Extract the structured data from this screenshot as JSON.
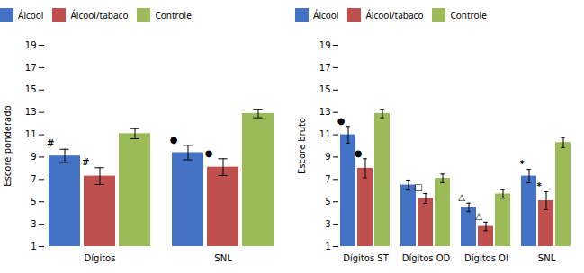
{
  "chart_data": [
    {
      "type": "bar",
      "ylabel": "Escore ponderado",
      "categories": [
        "Dígitos",
        "SNL"
      ],
      "series": [
        {
          "name": "Álcool",
          "color": "#4472c4",
          "values": [
            9.1,
            9.4
          ],
          "errors": [
            0.6,
            0.65
          ]
        },
        {
          "name": "Álcool/tabaco",
          "color": "#c0504d",
          "values": [
            7.3,
            8.1
          ],
          "errors": [
            0.75,
            0.75
          ]
        },
        {
          "name": "Controle",
          "color": "#9bbb59",
          "values": [
            11.1,
            12.9
          ],
          "errors": [
            0.45,
            0.38
          ]
        }
      ],
      "ylim": [
        1,
        19
      ],
      "yticks": [
        1,
        3,
        5,
        7,
        9,
        11,
        13,
        15,
        17,
        19
      ],
      "annotations": [
        {
          "category": "Dígitos",
          "series": "Álcool",
          "text": "#"
        },
        {
          "category": "Dígitos",
          "series": "Álcool/tabaco",
          "text": "#"
        },
        {
          "category": "SNL",
          "series": "Álcool",
          "text": "●"
        },
        {
          "category": "SNL",
          "series": "Álcool/tabaco",
          "text": "●"
        }
      ],
      "legend": "upper left",
      "grid": false
    },
    {
      "type": "bar",
      "ylabel": "Escore bruto",
      "categories": [
        "Dígitos ST",
        "Dígitos OD",
        "Dígitos OI",
        "SNL"
      ],
      "series": [
        {
          "name": "Álcool",
          "color": "#4472c4",
          "values": [
            11.0,
            6.5,
            4.5,
            7.3
          ],
          "errors": [
            0.75,
            0.45,
            0.38,
            0.6
          ]
        },
        {
          "name": "Álcool/tabaco",
          "color": "#c0504d",
          "values": [
            8.0,
            5.3,
            2.8,
            5.1
          ],
          "errors": [
            0.85,
            0.45,
            0.38,
            0.8
          ]
        },
        {
          "name": "Controle",
          "color": "#9bbb59",
          "values": [
            12.9,
            7.1,
            5.7,
            10.3
          ],
          "errors": [
            0.38,
            0.38,
            0.38,
            0.45
          ]
        }
      ],
      "ylim": [
        1,
        19
      ],
      "yticks": [
        1,
        3,
        5,
        7,
        9,
        11,
        13,
        15,
        17,
        19
      ],
      "annotations": [
        {
          "category": "Dígitos ST",
          "series": "Álcool",
          "text": "●"
        },
        {
          "category": "Dígitos ST",
          "series": "Álcool/tabaco",
          "text": "●"
        },
        {
          "category": "Dígitos OD",
          "series": "Álcool/tabaco",
          "text": "□"
        },
        {
          "category": "Dígitos OI",
          "series": "Álcool",
          "text": "△"
        },
        {
          "category": "Dígitos OI",
          "series": "Álcool/tabaco",
          "text": "△"
        },
        {
          "category": "SNL",
          "series": "Álcool",
          "text": "*"
        },
        {
          "category": "SNL",
          "series": "Álcool/tabaco",
          "text": "*"
        }
      ],
      "legend": "upper left",
      "grid": false
    }
  ]
}
